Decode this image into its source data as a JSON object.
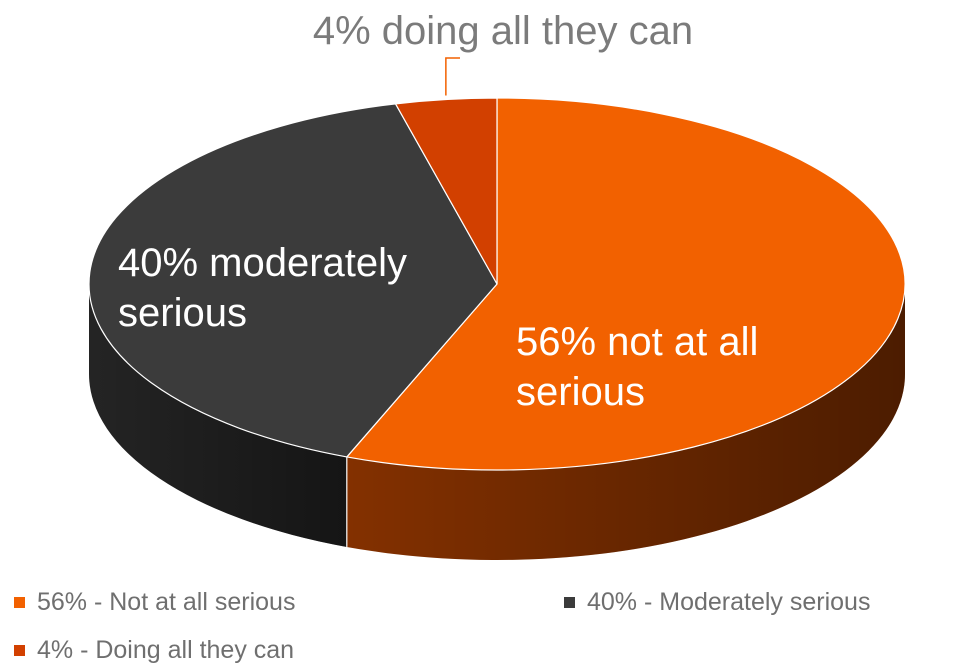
{
  "chart_data": {
    "type": "pie",
    "title": "",
    "slices": [
      {
        "label": "56% - Not at all serious",
        "value": 56,
        "color": "#f26100",
        "side_color": "#8a3300",
        "data_label": [
          "56% not at all",
          "serious"
        ],
        "label_color": "#ffffff"
      },
      {
        "label": "40% - Moderately serious",
        "value": 40,
        "color": "#3b3b3b",
        "side_color": "#262626",
        "data_label": [
          "40% moderately",
          "serious"
        ],
        "label_color": "#ffffff"
      },
      {
        "label": "4% - Doing all they can",
        "value": 4,
        "color": "#d24000",
        "side_color": "#7a2600",
        "data_label": [
          "4% doing all they can"
        ],
        "label_color": "#7b7b7b"
      }
    ],
    "legend_position": "bottom",
    "style": "3d"
  }
}
